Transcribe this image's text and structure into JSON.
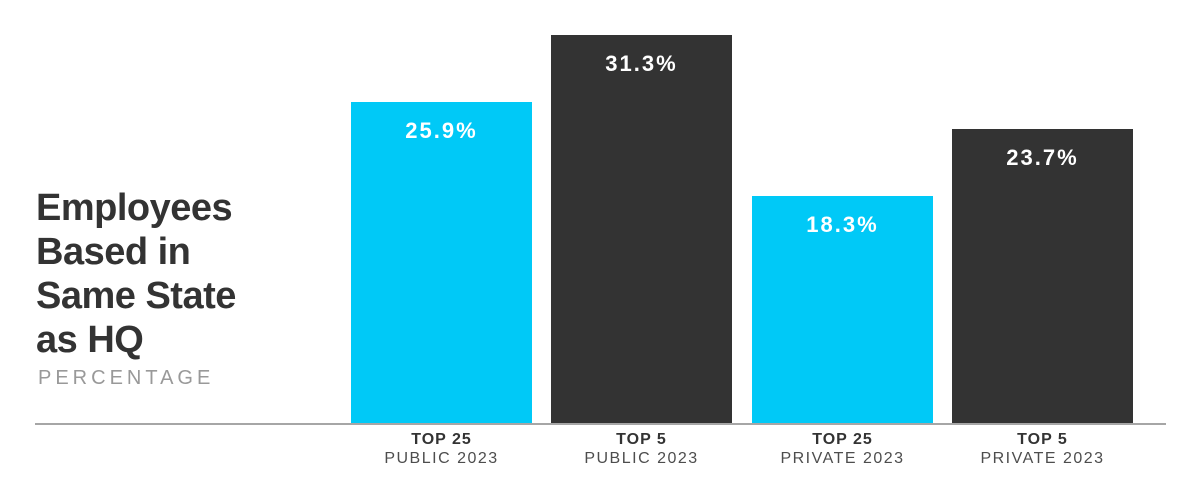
{
  "header": {
    "title_lines": [
      "Employees",
      "Based in",
      "Same State",
      "as HQ"
    ],
    "subtitle": "PERCENTAGE"
  },
  "chart_data": {
    "type": "bar",
    "title": "Employees Based in Same State as HQ",
    "subtitle": "PERCENTAGE",
    "unit": "%",
    "orientation": "vertical",
    "grid": false,
    "legend": "none",
    "ylim": [
      0,
      35
    ],
    "categories": [
      "TOP 25 PUBLIC 2023",
      "TOP 5 PUBLIC 2023",
      "TOP 25 PRIVATE 2023",
      "TOP 5 PRIVATE 2023"
    ],
    "category_lines": [
      [
        "TOP 25",
        "PUBLIC 2023"
      ],
      [
        "TOP 5",
        "PUBLIC 2023"
      ],
      [
        "TOP 25",
        "PRIVATE 2023"
      ],
      [
        "TOP 5",
        "PRIVATE 2023"
      ]
    ],
    "values": [
      25.9,
      31.3,
      18.3,
      23.7
    ],
    "value_labels": [
      "25.9%",
      "31.3%",
      "18.3%",
      "23.7%"
    ],
    "bar_colors": [
      "#00c9f7",
      "#333333",
      "#00c9f7",
      "#333333"
    ]
  },
  "colors": {
    "accent_cyan": "#00c9f7",
    "bar_dark": "#333333",
    "axis_line": "#a6a6a6",
    "title_text": "#333333",
    "subtitle_text": "#999999",
    "value_label_text": "#ffffff",
    "category_label_primary": "#333333",
    "category_label_secondary": "#4d4d4d",
    "background": "#ffffff"
  }
}
